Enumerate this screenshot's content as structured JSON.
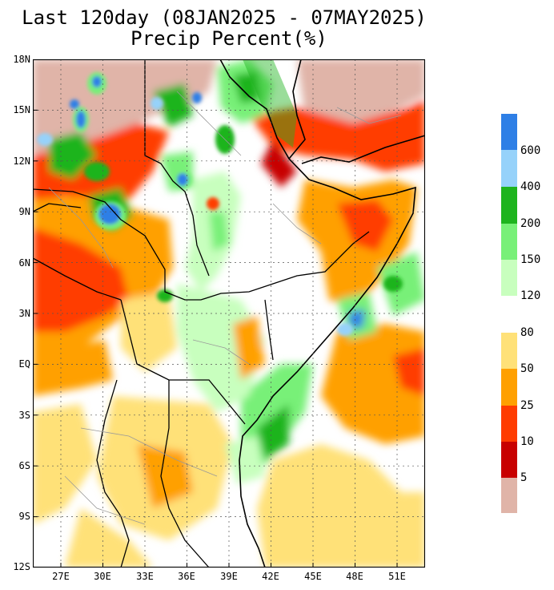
{
  "title": "Last 120day (08JAN2025 - 07MAY2025)",
  "subtitle": "Precip Percent(%)",
  "y_ticks": [
    "18N",
    "15N",
    "12N",
    "9N",
    "6N",
    "3N",
    "EQ",
    "3S",
    "6S",
    "9S",
    "12S"
  ],
  "x_ticks": [
    "27E",
    "30E",
    "33E",
    "36E",
    "39E",
    "42E",
    "45E",
    "48E",
    "51E"
  ],
  "legend": {
    "labels": [
      "600",
      "400",
      "200",
      "150",
      "120",
      "80",
      "50",
      "25",
      "10",
      "5"
    ],
    "colors": [
      "#2e7fe6",
      "#96d2fa",
      "#1eb41e",
      "#78f078",
      "#c8ffbe",
      "#ffffff",
      "#ffe178",
      "#ffa000",
      "#ff3c00",
      "#c80000",
      "#e0b4a8"
    ]
  },
  "map": {
    "region": "East Africa",
    "lat_range": [
      "12S",
      "18N"
    ],
    "lon_range": [
      "24E",
      "52E"
    ],
    "field": "precipitation percent of normal"
  }
}
